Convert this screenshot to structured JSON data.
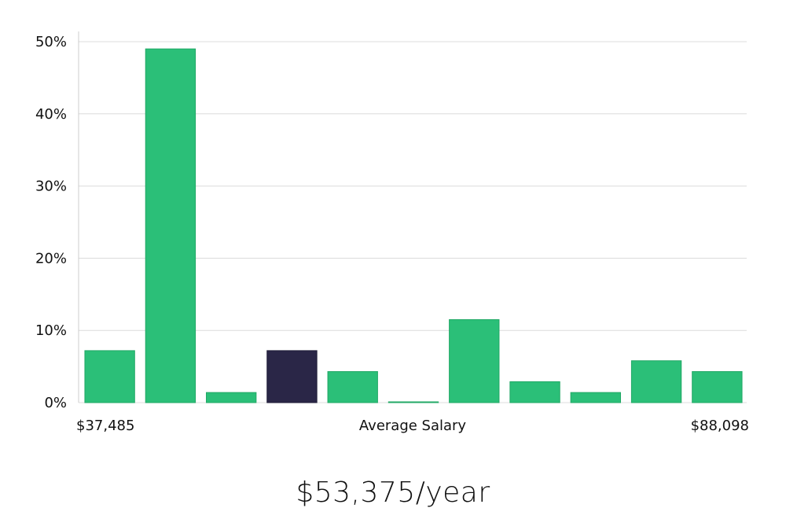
{
  "chart_data": {
    "type": "bar",
    "title": "",
    "xlabel": "Average Salary",
    "ylabel": "",
    "x_range_labels": {
      "min": "$37,485",
      "max": "$88,098"
    },
    "ylim": [
      0,
      50
    ],
    "yticks": [
      0,
      10,
      20,
      30,
      40,
      50
    ],
    "ytick_labels": [
      "0%",
      "10%",
      "20%",
      "30%",
      "40%",
      "50%"
    ],
    "grid": true,
    "values": [
      7.2,
      49.0,
      1.4,
      7.2,
      4.3,
      0.1,
      11.5,
      2.9,
      1.4,
      5.8,
      4.3
    ],
    "highlight_index": 3,
    "colors": {
      "bar": "#2bbf78",
      "highlight": "#2a2647"
    }
  },
  "summary": {
    "salary_text": "$53,375/year"
  }
}
